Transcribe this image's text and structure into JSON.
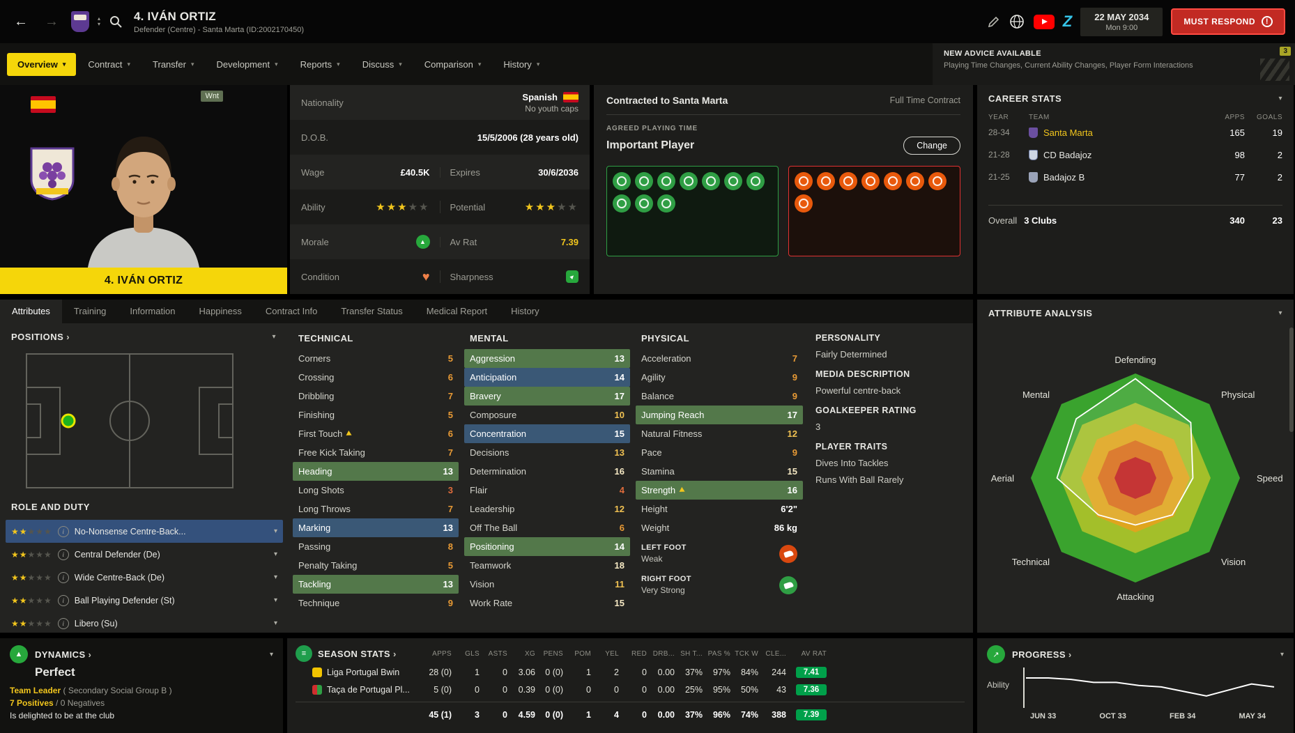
{
  "icons": {
    "back": "←",
    "forward": "→",
    "chev_down": "▾",
    "chev_up": "▴",
    "link": "›",
    "heart": "♥",
    "up_arrow": "▲",
    "info": "i",
    "exclaim": "!",
    "z_logo": "Z",
    "stats": "≡",
    "trend": "↗"
  },
  "header": {
    "title": "4. IVÁN ORTIZ",
    "subtitle": "Defender (Centre) - Santa Marta (ID:2002170450)",
    "date_line1": "22 MAY 2034",
    "date_line2": "Mon 9:00",
    "must_respond_label": "MUST RESPOND"
  },
  "nav": {
    "items": [
      {
        "label": "Overview",
        "cls": "active"
      },
      {
        "label": "Contract"
      },
      {
        "label": "Transfer"
      },
      {
        "label": "Development"
      },
      {
        "label": "Reports"
      },
      {
        "label": "Discuss"
      },
      {
        "label": "Comparison"
      },
      {
        "label": "History"
      }
    ],
    "advice_title": "NEW ADVICE AVAILABLE",
    "advice_text": "Playing Time Changes, Current Ability Changes, Player Form Interactions",
    "advice_badge": "3"
  },
  "player": {
    "banner": "4. IVÁN ORTIZ",
    "wanted_tag": "Wnt"
  },
  "info": {
    "nationality_label": "Nationality",
    "nationality_value": "Spanish",
    "nationality_sub": "No youth caps",
    "dob_label": "D.O.B.",
    "dob_value": "15/5/2006 (28 years old)",
    "wage_label": "Wage",
    "wage_value": "£40.5K",
    "expires_label": "Expires",
    "expires_value": "30/6/2036",
    "ability_label": "Ability",
    "ability_stars": "★★★",
    "ability_stars_empty": "★★",
    "potential_label": "Potential",
    "potential_stars": "★★★",
    "potential_stars_empty": "★★",
    "morale_label": "Morale",
    "avrat_label": "Av Rat",
    "avrat_value": "7.39",
    "condition_label": "Condition",
    "sharpness_label": "Sharpness"
  },
  "contract": {
    "title": "Contracted to Santa Marta",
    "type": "Full Time Contract",
    "apt_label": "AGREED PLAYING TIME",
    "apt_value": "Important Player",
    "change_label": "Change",
    "pros_icons": [
      "",
      "",
      "",
      "",
      "",
      "",
      "",
      "",
      "",
      ""
    ],
    "cons_icons": [
      "",
      "",
      "",
      "",
      "",
      "",
      "",
      ""
    ]
  },
  "career": {
    "title": "CAREER STATS",
    "col_year": "YEAR",
    "col_team": "TEAM",
    "col_apps": "APPS",
    "col_goals": "GOALS",
    "rows": [
      {
        "year": "28-34",
        "team": "Santa Marta",
        "apps": "165",
        "goals": "19",
        "cls": "team-hl",
        "crest": "crest-sm"
      },
      {
        "year": "21-28",
        "team": "CD Badajoz",
        "apps": "98",
        "goals": "2",
        "crest": "crest-cdb"
      },
      {
        "year": "21-25",
        "team": "Badajoz B",
        "apps": "77",
        "goals": "2",
        "crest": "crest-bb"
      }
    ],
    "overall_label": "Overall",
    "overall_clubs": "3 Clubs",
    "overall_apps": "340",
    "overall_goals": "23"
  },
  "tabs": [
    {
      "label": "Attributes",
      "cls": "active"
    },
    {
      "label": "Training"
    },
    {
      "label": "Information"
    },
    {
      "label": "Happiness"
    },
    {
      "label": "Contract Info"
    },
    {
      "label": "Transfer Status"
    },
    {
      "label": "Medical Report"
    },
    {
      "label": "History"
    }
  ],
  "positions": {
    "title": "POSITIONS"
  },
  "roles": {
    "title": "ROLE AND DUTY",
    "rows": [
      {
        "stars": "★★",
        "stars_empty": "★★★",
        "name": "No-Nonsense Centre-Back...",
        "cls": "selected"
      },
      {
        "stars": "★★",
        "stars_empty": "★★★",
        "name": "Central Defender (De)"
      },
      {
        "stars": "★★",
        "stars_empty": "★★★",
        "name": "Wide Centre-Back (De)"
      },
      {
        "stars": "★★",
        "stars_empty": "★★★",
        "name": "Ball Playing Defender (St)"
      },
      {
        "stars": "★★",
        "stars_empty": "★★★",
        "name": "Libero (Su)"
      }
    ]
  },
  "attributes": {
    "technical": {
      "title": "TECHNICAL",
      "rows": [
        {
          "name": "Corners",
          "value": "5"
        },
        {
          "name": "Crossing",
          "value": "6"
        },
        {
          "name": "Dribbling",
          "value": "7"
        },
        {
          "name": "Finishing",
          "value": "5"
        },
        {
          "name": "First Touch",
          "value": "6",
          "arrow": true
        },
        {
          "name": "Free Kick Taking",
          "value": "7"
        },
        {
          "name": "Heading",
          "value": "13",
          "hl": "hl-green"
        },
        {
          "name": "Long Shots",
          "value": "3"
        },
        {
          "name": "Long Throws",
          "value": "7"
        },
        {
          "name": "Marking",
          "value": "13",
          "hl": "hl-blue"
        },
        {
          "name": "Passing",
          "value": "8"
        },
        {
          "name": "Penalty Taking",
          "value": "5"
        },
        {
          "name": "Tackling",
          "value": "13",
          "hl": "hl-green"
        },
        {
          "name": "Technique",
          "value": "9"
        }
      ]
    },
    "mental": {
      "title": "MENTAL",
      "rows": [
        {
          "name": "Aggression",
          "value": "13",
          "hl": "hl-green"
        },
        {
          "name": "Anticipation",
          "value": "14",
          "hl": "hl-blue"
        },
        {
          "name": "Bravery",
          "value": "17",
          "hl": "hl-green"
        },
        {
          "name": "Composure",
          "value": "10"
        },
        {
          "name": "Concentration",
          "value": "15",
          "hl": "hl-blue"
        },
        {
          "name": "Decisions",
          "value": "13"
        },
        {
          "name": "Determination",
          "value": "16"
        },
        {
          "name": "Flair",
          "value": "4"
        },
        {
          "name": "Leadership",
          "value": "12"
        },
        {
          "name": "Off The Ball",
          "value": "6"
        },
        {
          "name": "Positioning",
          "value": "14",
          "hl": "hl-green"
        },
        {
          "name": "Teamwork",
          "value": "18"
        },
        {
          "name": "Vision",
          "value": "11"
        },
        {
          "name": "Work Rate",
          "value": "15"
        }
      ]
    },
    "physical": {
      "title": "PHYSICAL",
      "rows": [
        {
          "name": "Acceleration",
          "value": "7"
        },
        {
          "name": "Agility",
          "value": "9"
        },
        {
          "name": "Balance",
          "value": "9"
        },
        {
          "name": "Jumping Reach",
          "value": "17",
          "hl": "hl-green"
        },
        {
          "name": "Natural Fitness",
          "value": "12"
        },
        {
          "name": "Pace",
          "value": "9"
        },
        {
          "name": "Stamina",
          "value": "15"
        },
        {
          "name": "Strength",
          "value": "16",
          "hl": "hl-green",
          "arrow": true
        }
      ]
    },
    "body": [
      {
        "name": "Height",
        "value": "6'2\""
      },
      {
        "name": "Weight",
        "value": "86 kg"
      }
    ],
    "feet": {
      "left_label": "LEFT FOOT",
      "left_value": "Weak",
      "right_label": "RIGHT FOOT",
      "right_value": "Very Strong"
    }
  },
  "personality": {
    "p_title": "PERSONALITY",
    "p_value": "Fairly Determined",
    "m_title": "MEDIA DESCRIPTION",
    "m_value": "Powerful centre-back",
    "gk_title": "GOALKEEPER RATING",
    "gk_value": "3",
    "t_title": "PLAYER TRAITS",
    "traits": [
      {
        "label": "Dives Into Tackles"
      },
      {
        "label": "Runs With Ball Rarely"
      }
    ]
  },
  "analysis": {
    "title": "ATTRIBUTE ANALYSIS"
  },
  "dynamics": {
    "title": "DYNAMICS",
    "value": "Perfect",
    "role": "Team Leader",
    "role_suffix": " ( Secondary Social Group B )",
    "positives": "7 Positives",
    "negatives": " / 0 Negatives",
    "status": "Is delighted to be at the club"
  },
  "season": {
    "title": "SEASON STATS",
    "columns": [
      "APPS",
      "GLS",
      "ASTS",
      "XG",
      "PENS",
      "POM",
      "YEL",
      "RED",
      "DRB...",
      "SH T...",
      "PAS %",
      "TCK W",
      "CLE..."
    ],
    "avrat_col": "AV RAT",
    "row0": {
      "comp": "Liga Portugal Bwin",
      "avrat": "7.41"
    },
    "row0_cells": [
      "28 (0)",
      "1",
      "0",
      "3.06",
      "0 (0)",
      "1",
      "2",
      "0",
      "0.00",
      "37%",
      "97%",
      "84%",
      "244"
    ],
    "row1": {
      "comp": "Taça de Portugal Pl...",
      "avrat": "7.36"
    },
    "row1_cells": [
      "5 (0)",
      "0",
      "0",
      "0.39",
      "0 (0)",
      "0",
      "0",
      "0",
      "0.00",
      "25%",
      "95%",
      "50%",
      "43"
    ],
    "total": {
      "avrat": "7.39"
    },
    "total_cells": [
      "45 (1)",
      "3",
      "0",
      "4.59",
      "0 (0)",
      "1",
      "4",
      "0",
      "0.00",
      "37%",
      "96%",
      "74%",
      "388"
    ]
  },
  "progress": {
    "title": "PROGRESS"
  },
  "chart_data": [
    {
      "type": "radar",
      "title": "Attribute Analysis",
      "axes": [
        "Defending",
        "Physical",
        "Speed",
        "Vision",
        "Attacking",
        "Technical",
        "Aerial",
        "Mental"
      ],
      "values": [
        19,
        15,
        11,
        10,
        9,
        10,
        15,
        16
      ],
      "max": 20,
      "ring_radii": [
        1.0,
        0.72,
        0.52,
        0.36,
        0.2
      ],
      "ring_colors": [
        "#3aa32e",
        "#a3bf2a",
        "#dfa51e",
        "#d86e1a",
        "#bf1f1f"
      ],
      "line_color": "#ffffff"
    },
    {
      "type": "line",
      "title": "Progress",
      "ylabel": "Ability",
      "x_labels": [
        "JUN 33",
        "OCT 33",
        "FEB 34",
        "MAY 34"
      ],
      "values": [
        79,
        79,
        78,
        76,
        76,
        74,
        73,
        70,
        67,
        71,
        75,
        73
      ],
      "line_color": "#ffffff"
    }
  ]
}
